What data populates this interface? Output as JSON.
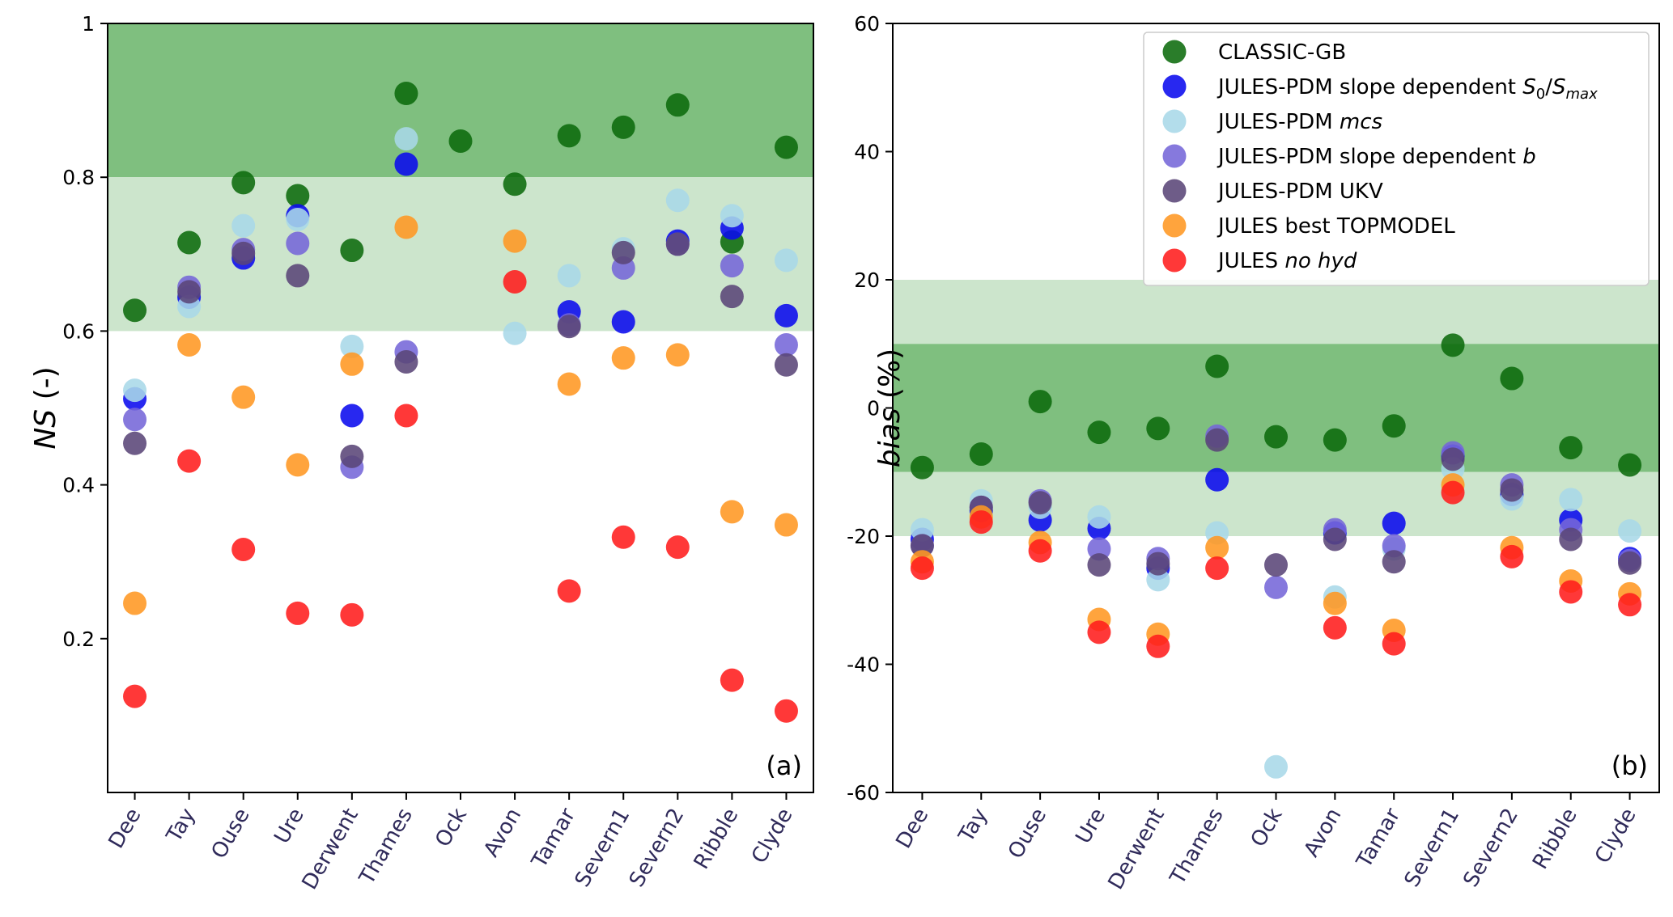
{
  "chart_data": [
    {
      "type": "scatter",
      "panel_label": "(a)",
      "ylabel_italic": "NS",
      "ylabel_rest": " (-)",
      "ylim": [
        0,
        1
      ],
      "yticks": [
        0.2,
        0.4,
        0.6,
        0.8,
        1.0
      ],
      "ytick_labels": [
        "0.2",
        "0.4",
        "0.6",
        "0.8",
        "1"
      ],
      "bands": [
        {
          "from": 0.8,
          "to": 1.0,
          "color": "#7fbf7f"
        },
        {
          "from": 0.6,
          "to": 0.8,
          "color": "#cce5cc"
        }
      ],
      "categories": [
        "Dee",
        "Tay",
        "Ouse",
        "Ure",
        "Derwent",
        "Thames",
        "Ock",
        "Avon",
        "Tamar",
        "Severn1",
        "Severn2",
        "Ribble",
        "Clyde"
      ],
      "series": [
        {
          "name": "CLASSIC-GB",
          "color": "#0c6b0c",
          "values": [
            0.627,
            0.715,
            0.793,
            0.776,
            0.705,
            0.909,
            0.847,
            0.791,
            0.854,
            0.865,
            0.894,
            0.716,
            0.839
          ]
        },
        {
          "name": "JULES-PDM slope dependent",
          "color": "#0a0aee",
          "values": [
            0.512,
            0.644,
            0.695,
            0.75,
            0.49,
            0.817,
            null,
            null,
            0.625,
            0.612,
            0.717,
            0.734,
            0.62
          ]
        },
        {
          "name": "JULES-PDM",
          "color": "#a8d8e8",
          "values": [
            0.523,
            0.632,
            0.737,
            0.745,
            0.58,
            0.85,
            null,
            0.597,
            0.672,
            0.707,
            0.77,
            0.75,
            0.692
          ]
        },
        {
          "name": "JULES-PDM slope dependent",
          "color": "#7566d8",
          "values": [
            0.485,
            0.657,
            0.706,
            0.714,
            0.423,
            0.573,
            null,
            null,
            0.608,
            0.682,
            0.713,
            0.685,
            0.582
          ]
        },
        {
          "name": "JULES-PDM UKV",
          "color": "#5a4577",
          "values": [
            0.454,
            0.651,
            0.701,
            0.672,
            0.437,
            0.56,
            null,
            null,
            0.606,
            0.702,
            0.713,
            0.645,
            0.556
          ]
        },
        {
          "name": "JULES best TOPMODEL",
          "color": "#ff9722",
          "values": [
            0.246,
            0.582,
            0.514,
            0.426,
            0.557,
            0.735,
            null,
            0.717,
            0.531,
            0.565,
            0.569,
            0.365,
            0.348
          ]
        },
        {
          "name": "JULES",
          "color": "#ff1c1c",
          "values": [
            0.125,
            0.431,
            0.316,
            0.233,
            0.231,
            0.49,
            null,
            0.664,
            0.262,
            0.332,
            0.319,
            0.146,
            0.106
          ]
        }
      ]
    },
    {
      "type": "scatter",
      "panel_label": "(b)",
      "ylabel_italic": "bias",
      "ylabel_rest": " (%)",
      "ylim": [
        -60,
        60
      ],
      "yticks": [
        -60,
        -40,
        -20,
        0,
        20,
        40,
        60
      ],
      "ytick_labels": [
        "-60",
        "-40",
        "-20",
        "0",
        "20",
        "40",
        "60"
      ],
      "bands": [
        {
          "from": 10,
          "to": 20,
          "color": "#cce5cc"
        },
        {
          "from": -10,
          "to": 10,
          "color": "#7fbf7f"
        },
        {
          "from": -20,
          "to": -10,
          "color": "#cce5cc"
        }
      ],
      "categories": [
        "Dee",
        "Tay",
        "Ouse",
        "Ure",
        "Derwent",
        "Thames",
        "Ock",
        "Avon",
        "Tamar",
        "Severn1",
        "Severn2",
        "Ribble",
        "Clyde"
      ],
      "series": [
        {
          "name": "CLASSIC-GB",
          "color": "#0c6b0c",
          "values": [
            -9.3,
            -7.2,
            1.0,
            -3.8,
            -3.2,
            6.5,
            -4.5,
            -5.0,
            -2.8,
            9.8,
            4.6,
            -6.2,
            -8.9
          ]
        },
        {
          "name": "JULES-PDM slope dependent",
          "color": "#0a0aee",
          "values": [
            -20.5,
            -16.0,
            -17.5,
            -18.8,
            -25.0,
            -11.2,
            null,
            -19.5,
            -18.0,
            -7.5,
            -13.5,
            -17.5,
            -23.5
          ]
        },
        {
          "name": "JULES-PDM",
          "color": "#a8d8e8",
          "values": [
            -19.0,
            -14.5,
            -15.5,
            -17.0,
            -26.8,
            -19.5,
            -56.0,
            -29.5,
            -22.0,
            -9.5,
            -14.2,
            -14.3,
            -19.2
          ]
        },
        {
          "name": "JULES-PDM slope dependent",
          "color": "#7566d8",
          "values": [
            -21.5,
            -15.5,
            -14.5,
            -22.0,
            -23.5,
            -4.4,
            -28.0,
            -19.0,
            -21.5,
            -7.0,
            -12.0,
            -19.0,
            -23.8
          ]
        },
        {
          "name": "JULES-PDM UKV",
          "color": "#5a4577",
          "values": [
            -21.5,
            -15.5,
            -14.8,
            -24.5,
            -24.3,
            -5.0,
            -24.5,
            -20.5,
            -24.0,
            -8.0,
            -12.8,
            -20.5,
            -24.2
          ]
        },
        {
          "name": "JULES best TOPMODEL",
          "color": "#ff9722",
          "values": [
            -24.0,
            -17.0,
            -21.0,
            -33.0,
            -35.3,
            -21.8,
            null,
            -30.5,
            -34.7,
            -12.0,
            -21.8,
            -27.0,
            -29.0
          ]
        },
        {
          "name": "JULES",
          "color": "#ff1c1c",
          "values": [
            -25.0,
            -17.8,
            -22.3,
            -35.0,
            -37.2,
            -25.0,
            null,
            -34.3,
            -36.8,
            -13.2,
            -23.2,
            -28.7,
            -30.7
          ]
        }
      ]
    }
  ],
  "legend": {
    "placement": "top-right",
    "entries": [
      {
        "prefix": "CLASSIC-GB",
        "color": "#0c6b0c"
      },
      {
        "prefix": "JULES-PDM slope dependent ",
        "math": true,
        "color": "#0a0aee"
      },
      {
        "prefix": "JULES-PDM ",
        "italic": "mcs",
        "color": "#a8d8e8"
      },
      {
        "prefix": "JULES-PDM slope dependent ",
        "italic": "b",
        "color": "#7566d8"
      },
      {
        "prefix": "JULES-PDM UKV",
        "color": "#5a4577"
      },
      {
        "prefix": "JULES best TOPMODEL",
        "color": "#ff9722"
      },
      {
        "prefix": "JULES ",
        "italic": "no hyd",
        "color": "#ff1c1c"
      }
    ],
    "math_parts": {
      "s": "S",
      "sub0": "0",
      "slash": "/",
      "s2": "S",
      "submax": "max"
    }
  }
}
